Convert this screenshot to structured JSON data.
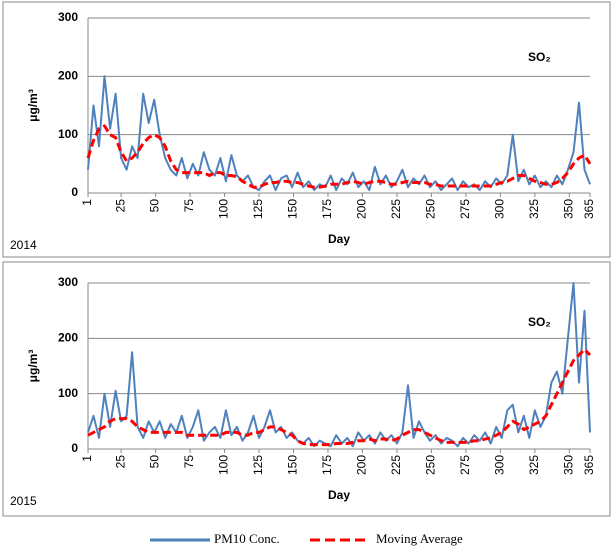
{
  "chart_data": [
    {
      "type": "line",
      "annotation": "SO₂",
      "year_label": "2014",
      "xlabel": "Day",
      "ylabel": "μg/m³",
      "xlim": [
        1,
        365
      ],
      "xticks": [
        1,
        25,
        50,
        75,
        100,
        125,
        150,
        175,
        200,
        225,
        250,
        275,
        300,
        325,
        350,
        365
      ],
      "ylim": [
        0,
        300
      ],
      "yticks": [
        0,
        100,
        200,
        300
      ],
      "grid": true,
      "x": [
        1,
        5,
        9,
        13,
        17,
        21,
        25,
        29,
        33,
        37,
        41,
        45,
        49,
        53,
        57,
        61,
        65,
        69,
        73,
        77,
        81,
        85,
        89,
        93,
        97,
        101,
        105,
        109,
        113,
        117,
        121,
        125,
        129,
        133,
        137,
        141,
        145,
        149,
        153,
        157,
        161,
        165,
        169,
        173,
        177,
        181,
        185,
        189,
        193,
        197,
        201,
        205,
        209,
        213,
        217,
        221,
        225,
        229,
        233,
        237,
        241,
        245,
        249,
        253,
        257,
        261,
        265,
        269,
        273,
        277,
        281,
        285,
        289,
        293,
        297,
        301,
        305,
        309,
        313,
        317,
        321,
        325,
        329,
        333,
        337,
        341,
        345,
        349,
        353,
        357,
        361,
        365
      ],
      "series": [
        {
          "name": "PM10 Conc.",
          "color": "#4f81bd",
          "dashed": false,
          "values": [
            40,
            150,
            80,
            200,
            110,
            170,
            60,
            40,
            80,
            60,
            170,
            120,
            160,
            100,
            60,
            40,
            30,
            60,
            25,
            50,
            30,
            70,
            40,
            30,
            60,
            20,
            65,
            30,
            20,
            30,
            10,
            5,
            20,
            30,
            5,
            25,
            30,
            10,
            35,
            10,
            20,
            5,
            15,
            10,
            30,
            5,
            25,
            15,
            35,
            10,
            20,
            5,
            45,
            15,
            30,
            10,
            20,
            40,
            10,
            25,
            15,
            30,
            10,
            20,
            5,
            15,
            25,
            5,
            20,
            10,
            15,
            5,
            20,
            10,
            25,
            15,
            30,
            100,
            20,
            40,
            15,
            30,
            10,
            20,
            10,
            30,
            15,
            40,
            70,
            155,
            40,
            15
          ]
        },
        {
          "name": "Moving Average",
          "color": "#ff0000",
          "dashed": true,
          "values": [
            60,
            90,
            110,
            115,
            100,
            95,
            70,
            55,
            60,
            70,
            85,
            95,
            100,
            95,
            80,
            55,
            40,
            35,
            35,
            35,
            35,
            35,
            30,
            35,
            35,
            30,
            30,
            28,
            20,
            15,
            10,
            10,
            15,
            18,
            18,
            20,
            20,
            18,
            18,
            15,
            12,
            10,
            10,
            12,
            15,
            15,
            15,
            18,
            20,
            18,
            15,
            18,
            20,
            20,
            18,
            15,
            15,
            18,
            20,
            18,
            18,
            18,
            15,
            15,
            12,
            12,
            12,
            12,
            12,
            12,
            12,
            12,
            12,
            12,
            15,
            18,
            20,
            25,
            30,
            30,
            25,
            20,
            18,
            15,
            15,
            18,
            25,
            35,
            50,
            60,
            65,
            50
          ]
        }
      ]
    },
    {
      "type": "line",
      "annotation": "SO₂",
      "year_label": "2015",
      "xlabel": "Day",
      "ylabel": "μg/m³",
      "xlim": [
        1,
        365
      ],
      "xticks": [
        1,
        25,
        50,
        75,
        100,
        125,
        150,
        175,
        200,
        225,
        250,
        275,
        300,
        325,
        350,
        365
      ],
      "ylim": [
        0,
        300
      ],
      "yticks": [
        0,
        100,
        200,
        300
      ],
      "grid": true,
      "x": [
        1,
        5,
        9,
        13,
        17,
        21,
        25,
        29,
        33,
        37,
        41,
        45,
        49,
        53,
        57,
        61,
        65,
        69,
        73,
        77,
        81,
        85,
        89,
        93,
        97,
        101,
        105,
        109,
        113,
        117,
        121,
        125,
        129,
        133,
        137,
        141,
        145,
        149,
        153,
        157,
        161,
        165,
        169,
        173,
        177,
        181,
        185,
        189,
        193,
        197,
        201,
        205,
        209,
        213,
        217,
        221,
        225,
        229,
        233,
        237,
        241,
        245,
        249,
        253,
        257,
        261,
        265,
        269,
        273,
        277,
        281,
        285,
        289,
        293,
        297,
        301,
        305,
        309,
        313,
        317,
        321,
        325,
        329,
        333,
        337,
        341,
        345,
        349,
        353,
        357,
        361,
        365
      ],
      "series": [
        {
          "name": "PM10 Conc.",
          "color": "#4f81bd",
          "dashed": false,
          "values": [
            30,
            60,
            20,
            100,
            40,
            105,
            50,
            60,
            175,
            40,
            20,
            50,
            30,
            50,
            20,
            45,
            30,
            60,
            20,
            40,
            70,
            15,
            30,
            40,
            20,
            70,
            25,
            40,
            15,
            30,
            60,
            20,
            40,
            70,
            30,
            40,
            20,
            30,
            15,
            10,
            20,
            5,
            15,
            10,
            5,
            25,
            10,
            20,
            5,
            30,
            15,
            25,
            10,
            30,
            15,
            25,
            10,
            30,
            115,
            20,
            50,
            30,
            15,
            25,
            10,
            20,
            15,
            5,
            20,
            10,
            25,
            15,
            30,
            10,
            40,
            20,
            70,
            80,
            30,
            60,
            20,
            70,
            40,
            60,
            120,
            140,
            100,
            200,
            300,
            120,
            250,
            30
          ]
        },
        {
          "name": "Moving Average",
          "color": "#ff0000",
          "dashed": true,
          "values": [
            25,
            30,
            35,
            40,
            50,
            55,
            55,
            55,
            50,
            40,
            35,
            30,
            30,
            30,
            30,
            30,
            30,
            30,
            25,
            25,
            25,
            25,
            25,
            25,
            25,
            30,
            30,
            30,
            25,
            25,
            30,
            30,
            35,
            40,
            40,
            35,
            30,
            25,
            15,
            10,
            8,
            8,
            8,
            8,
            8,
            10,
            10,
            10,
            12,
            15,
            15,
            18,
            15,
            18,
            18,
            15,
            18,
            25,
            30,
            35,
            35,
            30,
            25,
            20,
            15,
            12,
            12,
            12,
            12,
            12,
            15,
            15,
            18,
            20,
            25,
            30,
            40,
            50,
            45,
            35,
            40,
            45,
            50,
            60,
            80,
            100,
            120,
            140,
            160,
            170,
            180,
            170
          ]
        }
      ]
    }
  ]
}
